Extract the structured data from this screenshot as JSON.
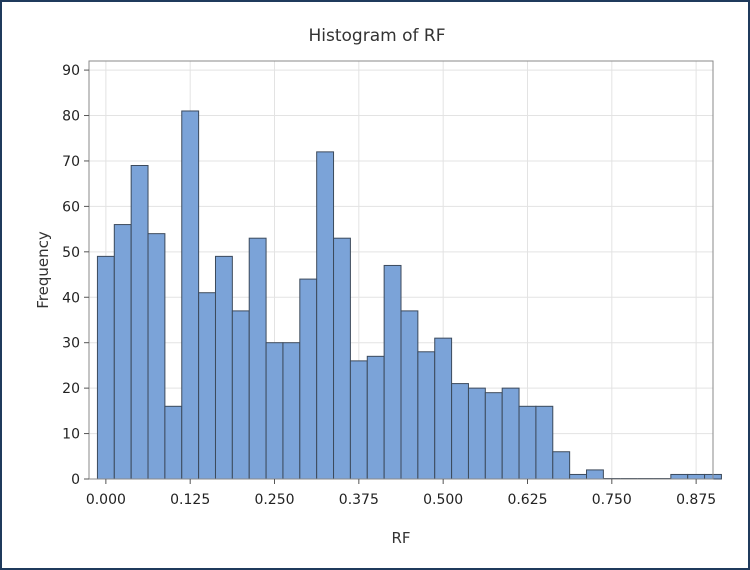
{
  "chart_data": {
    "type": "bar",
    "title": "Histogram of RF",
    "xlabel": "RF",
    "ylabel": "Frequency",
    "bin_width": 0.025,
    "bin_start": -0.0125,
    "values": [
      49,
      56,
      69,
      54,
      16,
      81,
      41,
      49,
      37,
      53,
      30,
      30,
      44,
      72,
      53,
      26,
      27,
      47,
      37,
      28,
      31,
      21,
      20,
      19,
      20,
      16,
      16,
      6,
      1,
      2,
      0,
      0,
      0,
      0,
      1,
      1,
      1
    ],
    "xticks": [
      "0.000",
      "0.125",
      "0.250",
      "0.375",
      "0.500",
      "0.625",
      "0.750",
      "0.875"
    ],
    "xtick_values": [
      0,
      0.125,
      0.25,
      0.375,
      0.5,
      0.625,
      0.75,
      0.875
    ],
    "yticks": [
      "0",
      "10",
      "20",
      "30",
      "40",
      "50",
      "60",
      "70",
      "80",
      "90"
    ],
    "ytick_values": [
      0,
      10,
      20,
      30,
      40,
      50,
      60,
      70,
      80,
      90
    ],
    "xlim": [
      -0.025,
      0.9
    ],
    "ylim": [
      0,
      92
    ],
    "grid": true,
    "bar_color": "#7ba3d8",
    "bar_edge_color": "#3c4a5c"
  }
}
